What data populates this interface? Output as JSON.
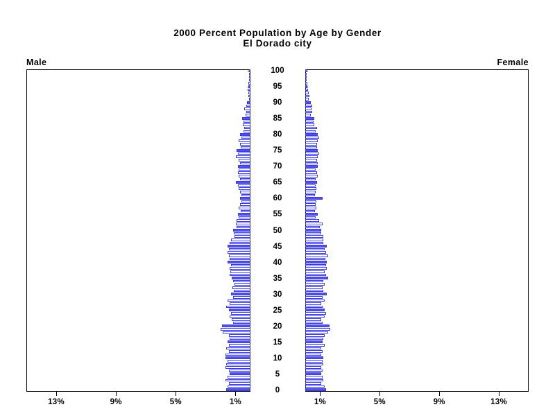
{
  "title": {
    "line1": "2000 Percent Population by Age by Gender",
    "line2": "El Dorado city"
  },
  "panels": {
    "male_label": "Male",
    "female_label": "Female"
  },
  "chart_data": {
    "type": "bar",
    "subtype": "population-pyramid",
    "title": "2000 Percent Population by Age by Gender",
    "subtitle": "El Dorado city",
    "orientation": "horizontal-mirrored",
    "legend": "none",
    "grid": "off",
    "x_axis": {
      "unit": "percent of population",
      "min": 0,
      "max": 15,
      "ticks": [
        {
          "value": 1,
          "label": "1%"
        },
        {
          "value": 5,
          "label": "5%"
        },
        {
          "value": 9,
          "label": "9%"
        },
        {
          "value": 13,
          "label": "13%"
        }
      ],
      "left_panel_label_order": [
        "13%",
        "9%",
        "5%",
        "1%"
      ],
      "right_panel_label_order": [
        "1%",
        "5%",
        "9%",
        "13%"
      ]
    },
    "y_axis": {
      "unit": "age in single years",
      "age_min": 0,
      "age_max": 100,
      "label_step": 5,
      "tick_ages": [
        0,
        5,
        10,
        15,
        20,
        25,
        30,
        35,
        40,
        45,
        50,
        55,
        60,
        65,
        70,
        75,
        80,
        85,
        90,
        95,
        100
      ],
      "tick_labels": [
        "0",
        "5",
        "10",
        "15",
        "20",
        "25",
        "30",
        "35",
        "40",
        "45",
        "50",
        "55",
        "60",
        "65",
        "70",
        "75",
        "80",
        "85",
        "90",
        "95",
        "100"
      ]
    },
    "highlight_rule": "bars at ages divisible by 5 are solid filled; other ages are hollow outline bars",
    "colors": {
      "bar_outline": "#3a3ae0",
      "bar_fill_solid": "#5152ee",
      "bar_fill_hollow": "#ffffff",
      "axis": "#000000",
      "text": "#000000",
      "background": "#ffffff"
    },
    "series": [
      {
        "name": "Male",
        "side": "left",
        "ages": "0-100 ascending",
        "values_by_age": [
          1.63,
          1.55,
          1.47,
          1.7,
          1.55,
          1.4,
          1.47,
          1.7,
          1.63,
          1.55,
          1.7,
          1.7,
          1.47,
          1.63,
          1.47,
          1.55,
          1.4,
          1.47,
          1.86,
          2.02,
          1.9,
          1.16,
          1.24,
          1.4,
          1.3,
          1.47,
          1.63,
          1.4,
          1.55,
          1.16,
          1.3,
          1.1,
          1.2,
          1.08,
          1.16,
          1.24,
          1.42,
          1.36,
          1.4,
          1.3,
          1.55,
          1.4,
          1.47,
          1.55,
          1.47,
          1.55,
          1.4,
          1.3,
          1.08,
          1.1,
          1.16,
          0.93,
          1.0,
          0.93,
          0.78,
          0.85,
          0.65,
          0.78,
          0.7,
          0.62,
          0.7,
          0.62,
          0.7,
          0.78,
          0.85,
          0.96,
          0.7,
          0.78,
          0.85,
          0.78,
          0.85,
          0.7,
          0.78,
          1.0,
          0.85,
          0.93,
          0.65,
          0.7,
          0.78,
          0.62,
          0.7,
          0.47,
          0.44,
          0.5,
          0.47,
          0.54,
          0.34,
          0.28,
          0.4,
          0.3,
          0.22,
          0.1,
          0.15,
          0.12,
          0.18,
          0.15,
          0.15,
          0.02,
          0.05,
          0.02,
          0.08
        ]
      },
      {
        "name": "Female",
        "side": "right",
        "ages": "0-100 ascending",
        "values_by_age": [
          1.4,
          1.3,
          1.08,
          1.24,
          1.16,
          1.08,
          1.16,
          1.08,
          1.24,
          1.16,
          1.24,
          1.08,
          1.16,
          1.08,
          1.3,
          1.16,
          1.24,
          1.3,
          1.55,
          1.7,
          1.63,
          1.16,
          1.08,
          1.3,
          1.4,
          1.3,
          1.16,
          1.08,
          1.3,
          1.16,
          1.47,
          1.24,
          1.16,
          1.3,
          1.24,
          1.55,
          1.4,
          1.3,
          1.47,
          1.4,
          1.47,
          1.36,
          1.55,
          1.4,
          1.3,
          1.47,
          1.24,
          1.24,
          1.24,
          1.08,
          1.08,
          1.0,
          1.16,
          0.93,
          0.7,
          0.85,
          0.65,
          0.74,
          0.7,
          0.74,
          1.16,
          0.65,
          0.7,
          0.74,
          0.7,
          0.78,
          0.7,
          0.85,
          0.78,
          0.7,
          0.85,
          0.85,
          0.78,
          0.85,
          0.93,
          0.85,
          0.8,
          0.78,
          0.85,
          0.93,
          0.85,
          0.7,
          0.78,
          0.59,
          0.54,
          0.62,
          0.39,
          0.47,
          0.44,
          0.47,
          0.39,
          0.23,
          0.28,
          0.22,
          0.19,
          0.15,
          0.12,
          0.05,
          0.06,
          0.06,
          0.08
        ]
      }
    ]
  }
}
